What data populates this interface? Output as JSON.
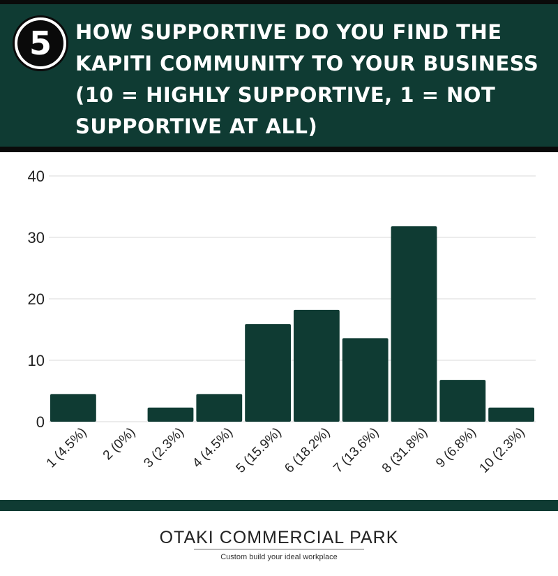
{
  "header": {
    "number": "5",
    "question": "HOW SUPPORTIVE DO YOU FIND THE KAPITI COMMUNITY TO YOUR BUSINESS (10 = HIGHLY SUPPORTIVE, 1 = NOT SUPPORTIVE AT ALL)"
  },
  "colors": {
    "primary": "#0f3b33",
    "gridline": "#d9d9d9",
    "text": "#222222"
  },
  "chart_data": {
    "type": "bar",
    "categories": [
      "1 (4.5%)",
      "2 (0%)",
      "3 (2.3%)",
      "4 (4.5%)",
      "5 (15.9%)",
      "6 (18.2%)",
      "7 (13.6%)",
      "8 (31.8%)",
      "9 (6.8%)",
      "10 (2.3%)"
    ],
    "values": [
      4.5,
      0,
      2.3,
      4.5,
      15.9,
      18.2,
      13.6,
      31.8,
      6.8,
      2.3
    ],
    "yticks": [
      0,
      10,
      20,
      30,
      40
    ],
    "ylim": [
      0,
      40
    ],
    "grid": true,
    "legend": "none"
  },
  "footer": {
    "brand": "OTAKI COMMERCIAL PARK",
    "tagline": "Custom build your ideal workplace"
  }
}
